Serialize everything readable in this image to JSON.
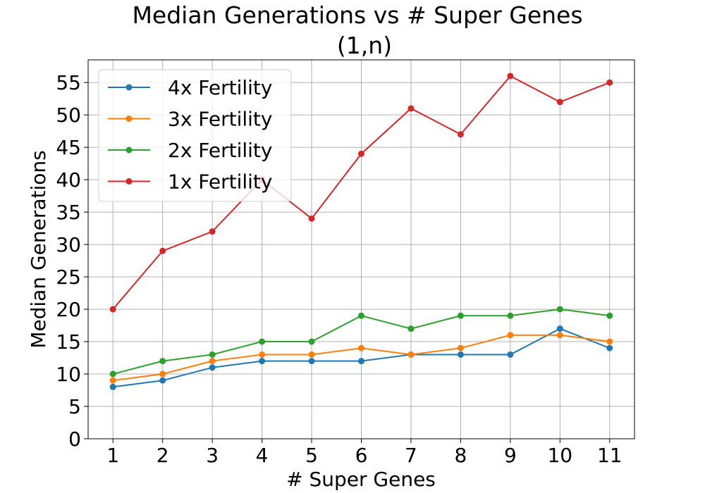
{
  "chart_data": {
    "type": "line",
    "title": "Median Generations vs # Super Genes",
    "subtitle": "(1,n)",
    "xlabel": "# Super Genes",
    "ylabel": "Median Generations",
    "x": [
      1,
      2,
      3,
      4,
      5,
      6,
      7,
      8,
      9,
      10,
      11
    ],
    "xlim": [
      0.5,
      11.5
    ],
    "ylim": [
      0,
      58.5
    ],
    "yticks": [
      0,
      5,
      10,
      15,
      20,
      25,
      30,
      35,
      40,
      45,
      50,
      55
    ],
    "grid": true,
    "legend_position": "upper-left",
    "series": [
      {
        "name": "4x Fertility",
        "color": "#1f77b4",
        "values": [
          8,
          9,
          11,
          12,
          12,
          12,
          13,
          13,
          13,
          17,
          14
        ]
      },
      {
        "name": "3x Fertility",
        "color": "#ff7f0e",
        "values": [
          9,
          10,
          12,
          13,
          13,
          14,
          13,
          14,
          16,
          16,
          15
        ]
      },
      {
        "name": "2x Fertility",
        "color": "#2ca02c",
        "values": [
          10,
          12,
          13,
          15,
          15,
          19,
          17,
          19,
          19,
          20,
          19
        ]
      },
      {
        "name": "1x Fertility",
        "color": "#d62728",
        "values": [
          20,
          29,
          32,
          40,
          34,
          44,
          51,
          47,
          56,
          52,
          55
        ]
      }
    ]
  }
}
